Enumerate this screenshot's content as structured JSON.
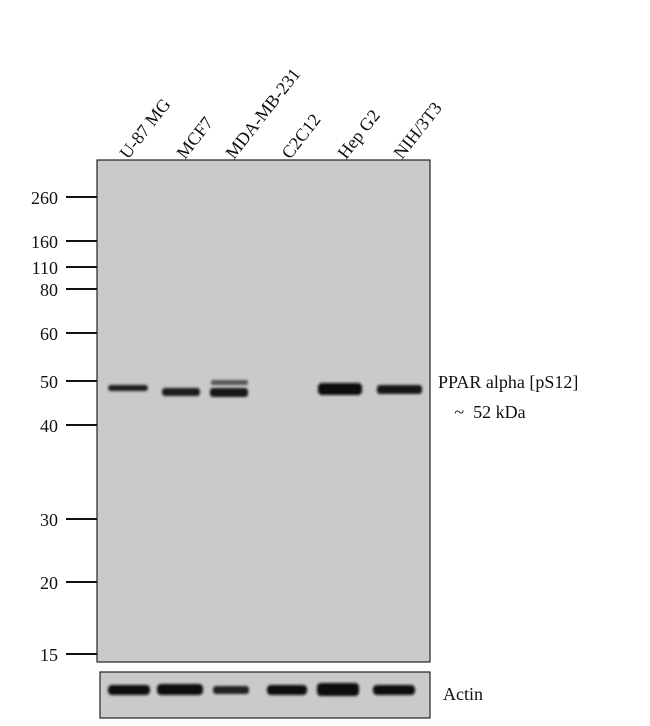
{
  "lanes": [
    "U-87 MG",
    "MCF7",
    "MDA-MB-231",
    "C2C12",
    "Hep G2",
    "NIH/3T3"
  ],
  "markers": [
    "260",
    "160",
    "110",
    "80",
    "60",
    "50",
    "40",
    "30",
    "20",
    "15"
  ],
  "target": {
    "name": "PPAR alpha [pS12]",
    "size": "~  52 kDa"
  },
  "loading_control": "Actin"
}
